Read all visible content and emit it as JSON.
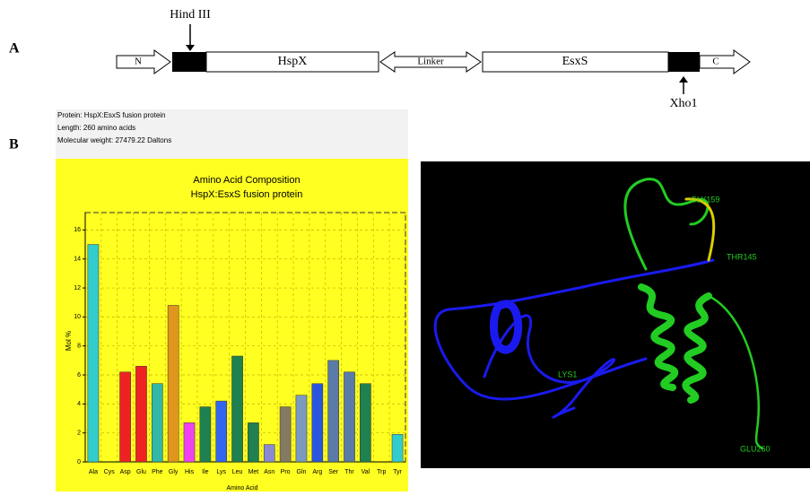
{
  "panel_a": {
    "letter": "A",
    "site_1": "Hind III",
    "site_2": "Xho1",
    "segments": [
      "N",
      "HspX",
      "Linker",
      "EsxS",
      "C"
    ]
  },
  "panel_b": {
    "letter": "B",
    "info": [
      "Protein: HspX:EsxS fusion protein",
      "Length: 260 amino acids",
      "Molecular weight: 27479.22 Daltons"
    ]
  },
  "chart_data": {
    "type": "bar",
    "title": "Amino Acid Composition",
    "subtitle": "HspX:EsxS fusion protein",
    "x_label": "Amino Acid",
    "y_label": "Mol %",
    "categories": [
      "Ala",
      "Cys",
      "Asp",
      "Glu",
      "Phe",
      "Gly",
      "His",
      "Ile",
      "Lys",
      "Leu",
      "Met",
      "Asn",
      "Pro",
      "Gln",
      "Arg",
      "Ser",
      "Thr",
      "Val",
      "Trp",
      "Tyr"
    ],
    "values": [
      15.0,
      0,
      6.2,
      6.6,
      5.4,
      10.8,
      2.7,
      3.8,
      4.2,
      7.3,
      2.7,
      1.2,
      3.8,
      4.6,
      5.4,
      7.0,
      6.2,
      5.4,
      0,
      1.9
    ],
    "colors": [
      "#33cccc",
      "#33cccc",
      "#ee2222",
      "#ee2222",
      "#33b8a8",
      "#e0961c",
      "#ee44ee",
      "#1f8050",
      "#3366ee",
      "#1f8050",
      "#1f8050",
      "#8a8ad0",
      "#847a62",
      "#7a9ac0",
      "#2a55dd",
      "#5a7aa8",
      "#5a7aa8",
      "#1f8050",
      "#33cccc",
      "#33cccc"
    ],
    "ylim": [
      0,
      17.2
    ],
    "yticks": [
      0,
      2,
      4,
      6,
      8,
      10,
      12,
      14,
      16
    ],
    "grid": true
  },
  "structure": {
    "labels": [
      "GLY159",
      "THR145",
      "LYS1",
      "GLU260"
    ]
  }
}
